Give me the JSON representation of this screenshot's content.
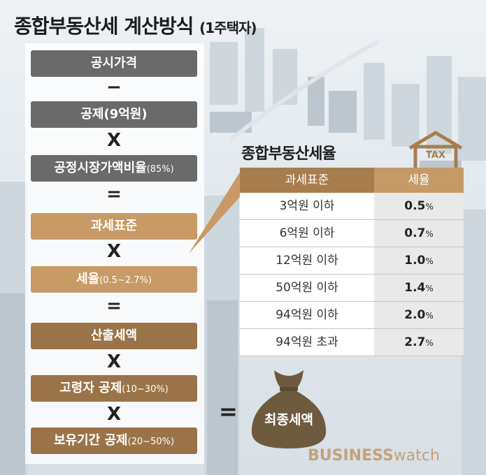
{
  "title": {
    "main": "종합부동산세 계산방식",
    "sub": "(1주택자)"
  },
  "formula": {
    "box1": "공시가격",
    "op1": "−",
    "box2": {
      "main": "공제",
      "small": "(9억원)"
    },
    "op2": "X",
    "box3": {
      "main": "공정시장가액비율",
      "small": "(85%)"
    },
    "op3": "=",
    "box4": "과세표준",
    "op4": "X",
    "box5": {
      "main": "세율",
      "small": "(0.5~2.7%)"
    },
    "op5": "=",
    "box6": "산출세액",
    "op6": "X",
    "box7": {
      "main": "고령자 공제",
      "small": "(10~30%)"
    },
    "op7": "X",
    "box8": {
      "main": "보유기간 공제",
      "small": "(20~50%)"
    }
  },
  "rate_table": {
    "title": "종합부동산세율",
    "icon_label": "TAX",
    "header": {
      "base": "과세표준",
      "rate": "세율"
    },
    "rows": [
      {
        "base": "3억원 이하",
        "rate": "0.5",
        "unit": "%"
      },
      {
        "base": "6억원 이하",
        "rate": "0.7",
        "unit": "%"
      },
      {
        "base": "12억원 이하",
        "rate": "1.0",
        "unit": "%"
      },
      {
        "base": "50억원 이하",
        "rate": "1.4",
        "unit": "%"
      },
      {
        "base": "94억원 이하",
        "rate": "2.0",
        "unit": "%"
      },
      {
        "base": "94억원 초과",
        "rate": "2.7",
        "unit": "%"
      }
    ]
  },
  "result": {
    "equals": "=",
    "label": "최종세액"
  },
  "logo": {
    "business": "BUSINESS",
    "watch": "watch"
  },
  "colors": {
    "gray": "#6b6a6b",
    "tan": "#c89a66",
    "brown": "#9a7448",
    "bag": "#6e5a3f"
  }
}
